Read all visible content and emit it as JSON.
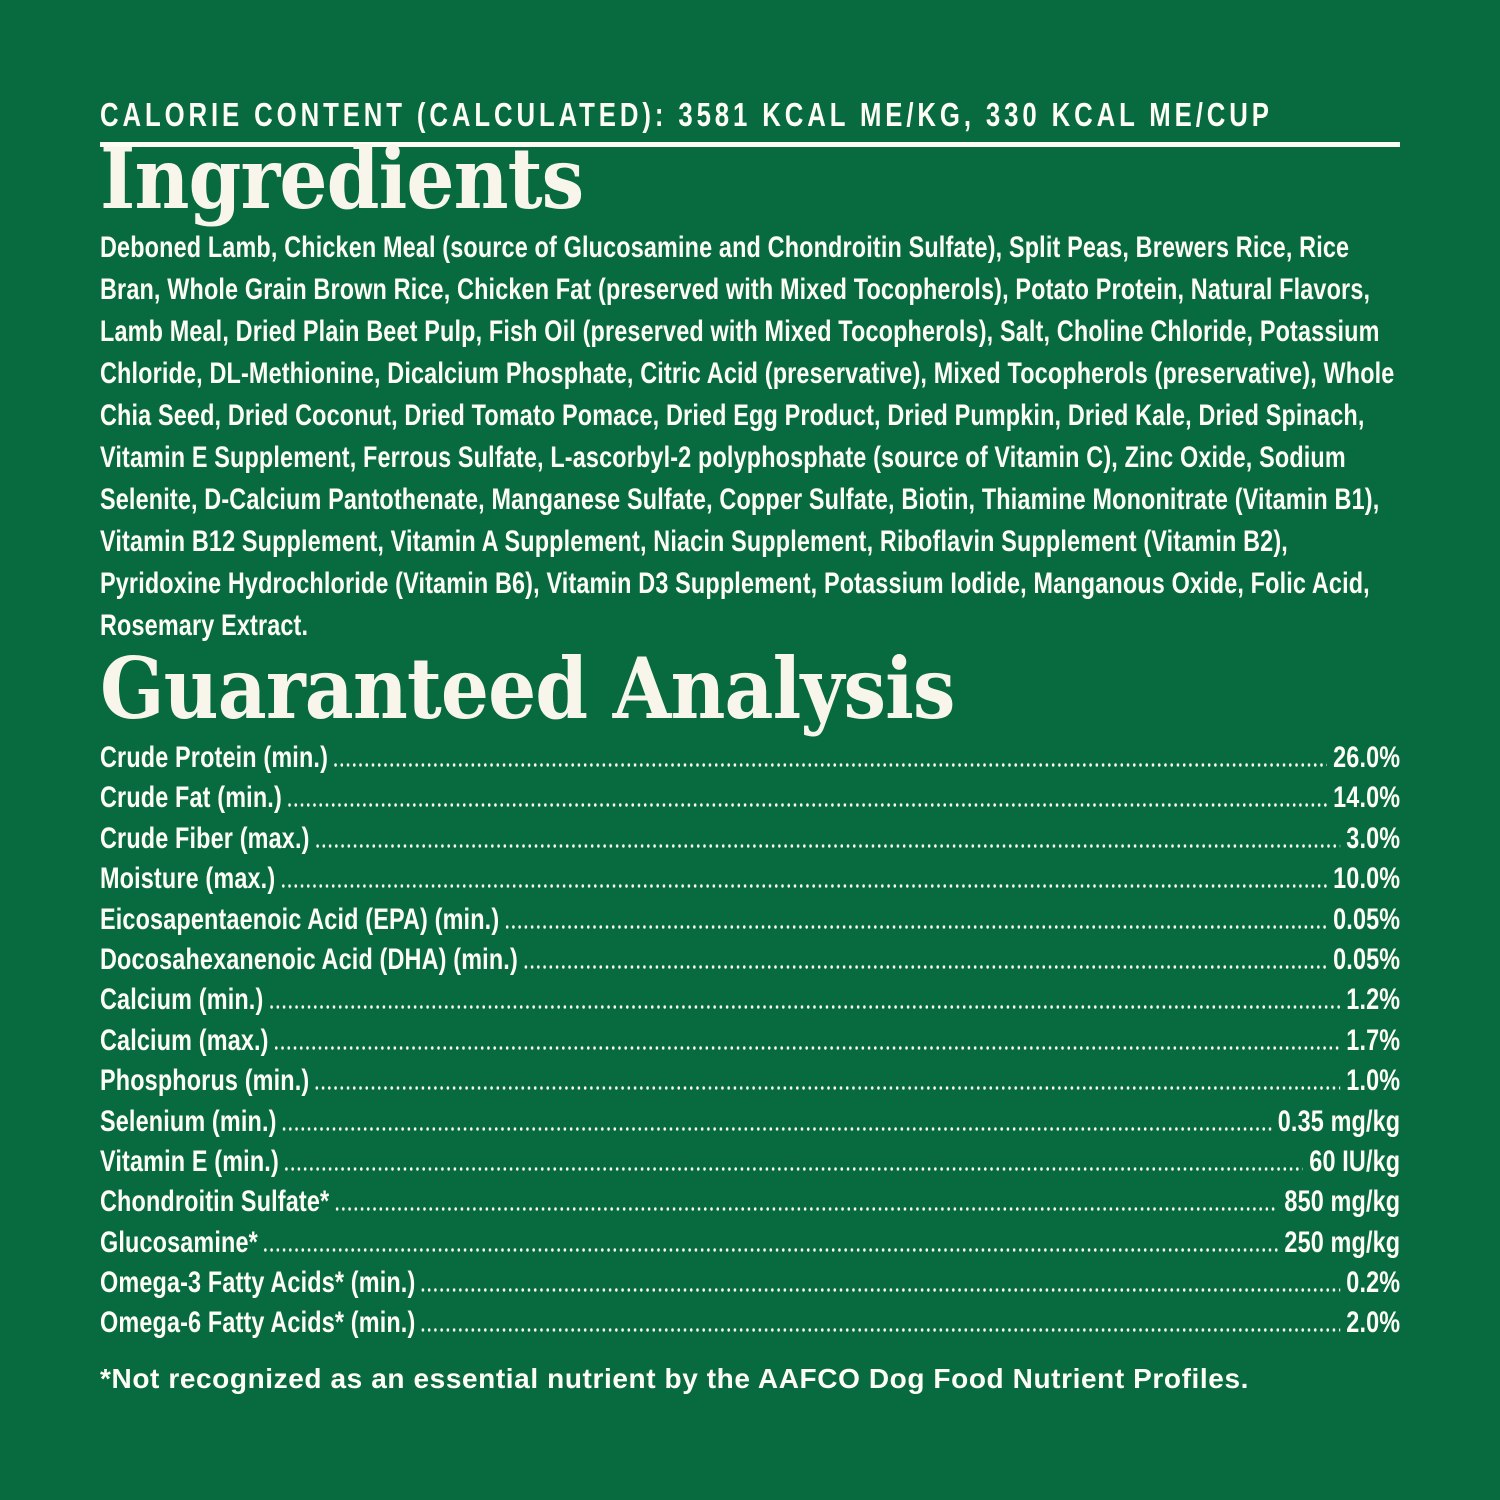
{
  "label": {
    "calorie_line": "CALORIE CONTENT (CALCULATED): 3581 KCAL ME/KG, 330 KCAL ME/CUP",
    "ingredients": {
      "heading": "Ingredients",
      "text": "Deboned Lamb, Chicken Meal (source of Glucosamine and Chondroitin Sulfate), Split Peas, Brewers Rice, Rice Bran, Whole Grain Brown Rice, Chicken Fat (preserved with Mixed Tocopherols), Potato Protein, Natural Flavors, Lamb Meal, Dried Plain Beet Pulp, Fish Oil (preserved with Mixed Tocopherols), Salt, Choline Chloride, Potassium Chloride, DL-Methionine, Dicalcium Phosphate, Citric Acid (preservative), Mixed Tocopherols (preservative), Whole Chia Seed, Dried Coconut, Dried Tomato Pomace, Dried Egg Product, Dried Pumpkin, Dried Kale, Dried Spinach, Vitamin E Supplement, Ferrous Sulfate, L-ascorbyl-2 polyphosphate (source of Vitamin C), Zinc Oxide, Sodium Selenite, D-Calcium Pantothenate, Manganese Sulfate, Copper Sulfate, Biotin, Thiamine Mononitrate (Vitamin B1), Vitamin B12 Supplement, Vitamin A Supplement, Niacin Supplement, Riboflavin Supplement (Vitamin B2), Pyridoxine Hydrochloride (Vitamin B6), Vitamin D3 Supplement, Potassium Iodide, Manganous Oxide, Folic Acid, Rosemary Extract."
    },
    "guaranteed_analysis": {
      "heading": "Guaranteed Analysis",
      "rows": [
        {
          "name": "Crude Protein (min.)",
          "value": "26.0%"
        },
        {
          "name": "Crude Fat (min.)",
          "value": "14.0%"
        },
        {
          "name": "Crude Fiber (max.)",
          "value": "3.0%"
        },
        {
          "name": "Moisture (max.)",
          "value": "10.0%"
        },
        {
          "name": "Eicosapentaenoic Acid (EPA) (min.)",
          "value": "0.05%"
        },
        {
          "name": "Docosahexanenoic Acid (DHA) (min.)",
          "value": "0.05%"
        },
        {
          "name": "Calcium (min.)",
          "value": "1.2%"
        },
        {
          "name": "Calcium (max.)",
          "value": "1.7%"
        },
        {
          "name": "Phosphorus (min.)",
          "value": "1.0%"
        },
        {
          "name": "Selenium (min.)",
          "value": "0.35 mg/kg"
        },
        {
          "name": "Vitamin E (min.)",
          "value": "60 IU/kg"
        },
        {
          "name": "Chondroitin Sulfate*",
          "value": "850 mg/kg"
        },
        {
          "name": "Glucosamine*",
          "value": "250 mg/kg"
        },
        {
          "name": "Omega-3 Fatty Acids* (min.)",
          "value": "0.2%"
        },
        {
          "name": "Omega-6 Fatty Acids* (min.)",
          "value": "2.0%"
        }
      ],
      "footnote": "*Not recognized as an essential nutrient by the AAFCO Dog Food Nutrient Profiles."
    },
    "colors": {
      "background": "#086B40",
      "body_text": "#FDFDF6",
      "heading_text": "#F8F6EA"
    }
  }
}
